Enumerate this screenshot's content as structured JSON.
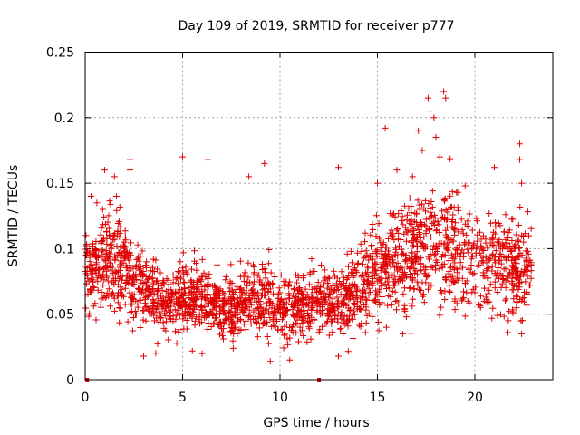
{
  "chart_data": {
    "type": "scatter",
    "title": "Day 109 of 2019, SRMTID for receiver p777",
    "xlabel": "GPS time / hours",
    "ylabel": "SRMTID / TECUs",
    "xlim": [
      0,
      24
    ],
    "ylim": [
      0,
      0.25
    ],
    "xticks": [
      0,
      5,
      10,
      15,
      20
    ],
    "yticks": [
      0,
      0.05,
      0.1,
      0.15,
      0.2,
      0.25
    ],
    "xtick_labels": [
      "0",
      "5",
      "10",
      "15",
      "20"
    ],
    "ytick_labels": [
      "0",
      "0.05",
      "0.1",
      "0.15",
      "0.2",
      "0.25"
    ],
    "grid": true,
    "marker": "plus",
    "color": "#e00000",
    "zero_points": [
      {
        "x": 0.1,
        "y": 0
      },
      {
        "x": 12.0,
        "y": 0
      }
    ],
    "series": [
      {
        "name": "SRMTID",
        "envelope": [
          {
            "x": 0.0,
            "y": 0.085
          },
          {
            "x": 1.0,
            "y": 0.09
          },
          {
            "x": 2.0,
            "y": 0.085
          },
          {
            "x": 3.0,
            "y": 0.068
          },
          {
            "x": 4.0,
            "y": 0.058
          },
          {
            "x": 5.0,
            "y": 0.062
          },
          {
            "x": 6.0,
            "y": 0.06
          },
          {
            "x": 7.0,
            "y": 0.055
          },
          {
            "x": 8.0,
            "y": 0.058
          },
          {
            "x": 9.0,
            "y": 0.064
          },
          {
            "x": 10.0,
            "y": 0.056
          },
          {
            "x": 11.0,
            "y": 0.055
          },
          {
            "x": 12.0,
            "y": 0.06
          },
          {
            "x": 13.0,
            "y": 0.06
          },
          {
            "x": 14.0,
            "y": 0.068
          },
          {
            "x": 15.0,
            "y": 0.085
          },
          {
            "x": 16.0,
            "y": 0.09
          },
          {
            "x": 17.0,
            "y": 0.1
          },
          {
            "x": 18.0,
            "y": 0.105
          },
          {
            "x": 19.0,
            "y": 0.095
          },
          {
            "x": 20.0,
            "y": 0.09
          },
          {
            "x": 21.0,
            "y": 0.09
          },
          {
            "x": 22.0,
            "y": 0.085
          },
          {
            "x": 23.0,
            "y": 0.085
          }
        ],
        "highlights": [
          {
            "x": 0.3,
            "y": 0.14
          },
          {
            "x": 0.6,
            "y": 0.135
          },
          {
            "x": 0.9,
            "y": 0.13
          },
          {
            "x": 1.0,
            "y": 0.16
          },
          {
            "x": 1.5,
            "y": 0.155
          },
          {
            "x": 1.6,
            "y": 0.14
          },
          {
            "x": 2.3,
            "y": 0.168
          },
          {
            "x": 2.3,
            "y": 0.16
          },
          {
            "x": 5.0,
            "y": 0.17
          },
          {
            "x": 6.3,
            "y": 0.168
          },
          {
            "x": 8.4,
            "y": 0.155
          },
          {
            "x": 9.2,
            "y": 0.165
          },
          {
            "x": 13.0,
            "y": 0.162
          },
          {
            "x": 15.0,
            "y": 0.15
          },
          {
            "x": 15.4,
            "y": 0.192
          },
          {
            "x": 16.0,
            "y": 0.16
          },
          {
            "x": 16.8,
            "y": 0.155
          },
          {
            "x": 17.1,
            "y": 0.19
          },
          {
            "x": 17.3,
            "y": 0.175
          },
          {
            "x": 17.6,
            "y": 0.215
          },
          {
            "x": 17.7,
            "y": 0.205
          },
          {
            "x": 17.9,
            "y": 0.2
          },
          {
            "x": 18.0,
            "y": 0.185
          },
          {
            "x": 18.4,
            "y": 0.22
          },
          {
            "x": 18.5,
            "y": 0.215
          },
          {
            "x": 18.2,
            "y": 0.17
          },
          {
            "x": 19.5,
            "y": 0.148
          },
          {
            "x": 21.0,
            "y": 0.162
          },
          {
            "x": 22.3,
            "y": 0.18
          },
          {
            "x": 22.3,
            "y": 0.168
          },
          {
            "x": 22.4,
            "y": 0.15
          },
          {
            "x": 3.0,
            "y": 0.018
          },
          {
            "x": 5.5,
            "y": 0.022
          },
          {
            "x": 9.5,
            "y": 0.014
          },
          {
            "x": 10.5,
            "y": 0.015
          },
          {
            "x": 13.0,
            "y": 0.018
          },
          {
            "x": 6.0,
            "y": 0.02
          },
          {
            "x": 16.3,
            "y": 0.035
          },
          {
            "x": 21.7,
            "y": 0.036
          },
          {
            "x": 22.4,
            "y": 0.035
          }
        ]
      }
    ]
  }
}
